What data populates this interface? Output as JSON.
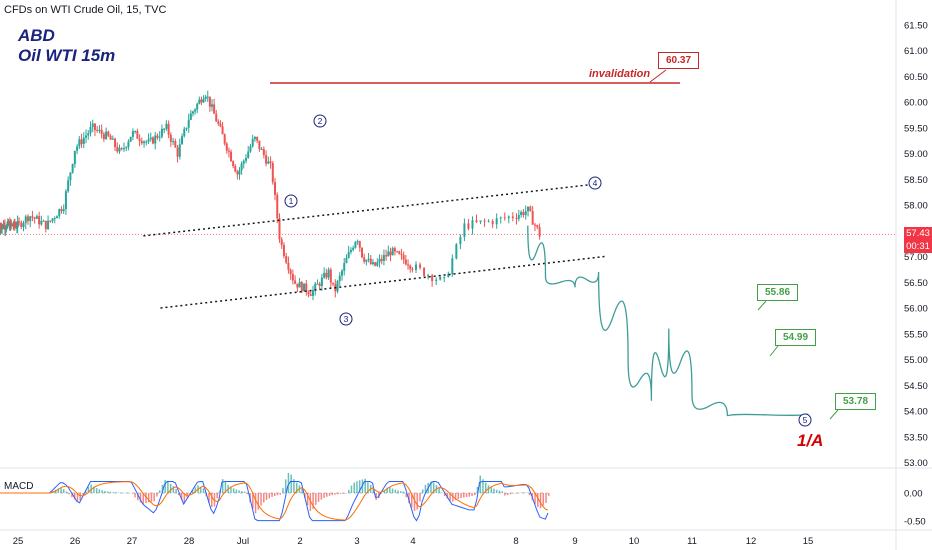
{
  "header": {
    "symbol_line": "CFDs on WTI Crude Oil, 15, TVC",
    "title_line1": "ABD",
    "title_line2": "Oil WTI 15m",
    "macd_label": "MACD"
  },
  "current_price": {
    "value": "57.43",
    "countdown": "00:31"
  },
  "annotations": {
    "invalidation_label": "invalidation",
    "invalidation_value": "60.37",
    "target1": "55.86",
    "target2": "54.99",
    "target3": "53.78",
    "wave_label": "1/A",
    "wave_1": "1",
    "wave_2": "2",
    "wave_3": "3",
    "wave_4": "4",
    "wave_5": "5"
  },
  "colors": {
    "up_candle": "#26a69a",
    "down_candle": "#ef5350",
    "invalidation_line": "#c62828",
    "projection": "#3f9c97",
    "target": "#43a047",
    "current_price": "#f23645",
    "wave_circle": "#1a237e"
  },
  "chart_data": {
    "type": "candlestick",
    "title": "CFDs on WTI Crude Oil, 15, TVC",
    "y_axis": {
      "ticks": [
        "61.50",
        "61.00",
        "60.50",
        "60.00",
        "59.50",
        "59.00",
        "58.50",
        "58.00",
        "57.50",
        "57.00",
        "56.50",
        "56.00",
        "55.50",
        "55.00",
        "54.50",
        "54.00",
        "53.50",
        "53.00"
      ],
      "range": [
        52.7,
        61.9
      ]
    },
    "x_axis": {
      "ticks": [
        "25",
        "26",
        "27",
        "28",
        "Jul",
        "2",
        "3",
        "4",
        "8",
        "9",
        "10",
        "11",
        "12",
        "15"
      ]
    },
    "approx_price_path": {
      "times": [
        0,
        0.2,
        0.5,
        0.8,
        1.0,
        1.3,
        1.6,
        1.8,
        2.0,
        2.3,
        2.6,
        2.8,
        3.0,
        3.3,
        3.6,
        3.9,
        4.2,
        4.5,
        4.65,
        4.9,
        5.2,
        5.5,
        5.6,
        5.8,
        6.0,
        6.1,
        6.3,
        6.6,
        6.9,
        7.1,
        7.3,
        7.5,
        7.8,
        8.0,
        8.2,
        8.4
      ],
      "values": [
        57.6,
        57.8,
        57.6,
        58.0,
        59.1,
        59.5,
        59.3,
        59.0,
        59.4,
        59.2,
        59.5,
        59.0,
        59.7,
        60.2,
        59.4,
        58.6,
        59.3,
        58.7,
        57.3,
        56.5,
        56.3,
        56.7,
        56.3,
        56.9,
        57.4,
        57.0,
        56.8,
        57.1,
        56.9,
        56.7,
        56.5,
        57.6,
        57.7,
        57.8,
        57.9,
        57.43
      ]
    },
    "projection_path": {
      "points": [
        [
          9.2,
          57.6
        ],
        [
          9.5,
          56.6
        ],
        [
          10.0,
          56.4
        ],
        [
          10.4,
          56.7
        ],
        [
          10.9,
          55.0
        ],
        [
          11.3,
          54.2
        ],
        [
          11.6,
          55.6
        ],
        [
          12.0,
          54.3
        ],
        [
          12.6,
          53.9
        ],
        [
          14.8,
          53.95
        ]
      ]
    },
    "channel": {
      "upper": [
        [
          2.2,
          57.4
        ],
        [
          9.3,
          58.4
        ]
      ],
      "lower": [
        [
          2.5,
          56.0
        ],
        [
          9.5,
          57.0
        ]
      ]
    },
    "invalidation_level": 60.37,
    "targets": [
      55.86,
      54.99,
      53.78
    ],
    "macd": {
      "ticks": [
        "0.00",
        "-0.50"
      ],
      "range": [
        -0.65,
        0.35
      ]
    }
  }
}
